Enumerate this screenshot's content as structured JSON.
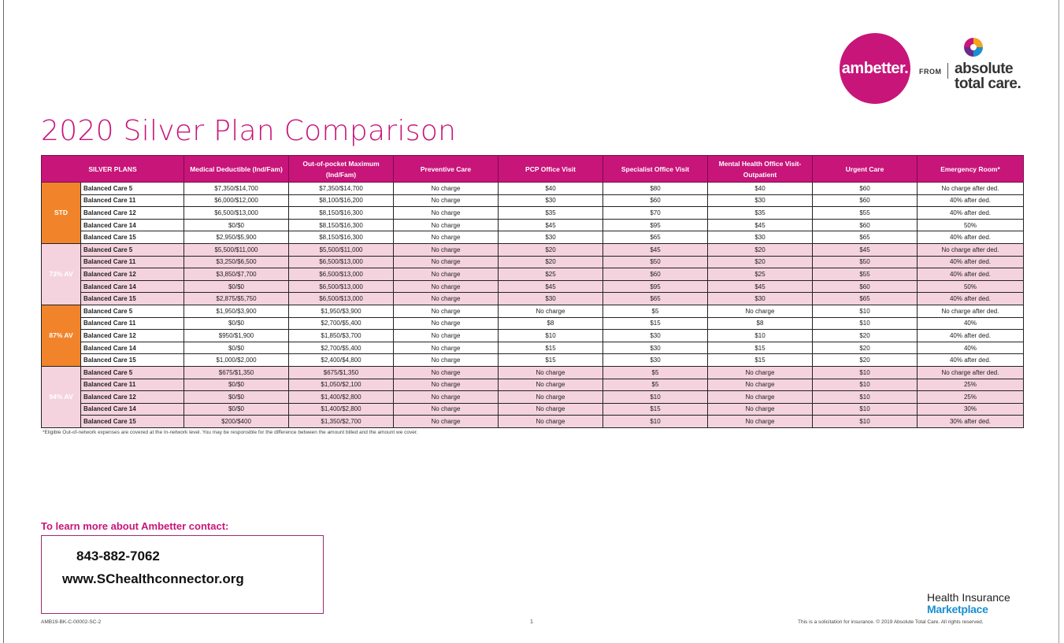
{
  "logo": {
    "brand": "ambetter.",
    "from": "FROM",
    "partner_line1": "absolute",
    "partner_line2": "total care."
  },
  "title": "2020 Silver Plan Comparison",
  "table": {
    "headers": [
      "SILVER PLANS",
      "Medical Deductible (Ind/Fam)",
      "Out-of-pocket Maximum (Ind/Fam)",
      "Preventive Care",
      "PCP Office Visit",
      "Specialist Office Visit",
      "Mental Health Office Visit-Outpatient",
      "Urgent Care",
      "Emergency Room*"
    ],
    "groups": [
      {
        "label": "STD",
        "rows": [
          [
            "Balanced Care 5",
            "$7,350/$14,700",
            "$7,350/$14,700",
            "No charge",
            "$40",
            "$80",
            "$40",
            "$60",
            "No charge after ded."
          ],
          [
            "Balanced Care 11",
            "$6,000/$12,000",
            "$8,100/$16,200",
            "No charge",
            "$30",
            "$60",
            "$30",
            "$60",
            "40% after ded."
          ],
          [
            "Balanced Care 12",
            "$6,500/$13,000",
            "$8,150/$16,300",
            "No charge",
            "$35",
            "$70",
            "$35",
            "$55",
            "40% after ded."
          ],
          [
            "Balanced Care 14",
            "$0/$0",
            "$8,150/$16,300",
            "No charge",
            "$45",
            "$95",
            "$45",
            "$60",
            "50%"
          ],
          [
            "Balanced Care 15",
            "$2,950/$5,900",
            "$8,150/$16,300",
            "No charge",
            "$30",
            "$65",
            "$30",
            "$65",
            "40% after ded."
          ]
        ]
      },
      {
        "label": "73% AV",
        "rows": [
          [
            "Balanced Care 5",
            "$5,500/$11,000",
            "$5,500/$11,000",
            "No charge",
            "$20",
            "$45",
            "$20",
            "$45",
            "No charge after ded."
          ],
          [
            "Balanced Care 11",
            "$3,250/$6,500",
            "$6,500/$13,000",
            "No charge",
            "$20",
            "$50",
            "$20",
            "$50",
            "40% after ded."
          ],
          [
            "Balanced Care 12",
            "$3,850/$7,700",
            "$6,500/$13,000",
            "No charge",
            "$25",
            "$60",
            "$25",
            "$55",
            "40% after ded."
          ],
          [
            "Balanced Care 14",
            "$0/$0",
            "$6,500/$13,000",
            "No charge",
            "$45",
            "$95",
            "$45",
            "$60",
            "50%"
          ],
          [
            "Balanced Care 15",
            "$2,875/$5,750",
            "$6,500/$13,000",
            "No charge",
            "$30",
            "$65",
            "$30",
            "$65",
            "40% after ded."
          ]
        ]
      },
      {
        "label": "87% AV",
        "rows": [
          [
            "Balanced Care 5",
            "$1,950/$3,900",
            "$1,950/$3,900",
            "No charge",
            "No charge",
            "$5",
            "No charge",
            "$10",
            "No charge after ded."
          ],
          [
            "Balanced Care 11",
            "$0/$0",
            "$2,700/$5,400",
            "No charge",
            "$8",
            "$15",
            "$8",
            "$10",
            "40%"
          ],
          [
            "Balanced Care 12",
            "$950/$1,900",
            "$1,850/$3,700",
            "No charge",
            "$10",
            "$30",
            "$10",
            "$20",
            "40% after ded."
          ],
          [
            "Balanced Care 14",
            "$0/$0",
            "$2,700/$5,400",
            "No charge",
            "$15",
            "$30",
            "$15",
            "$20",
            "40%"
          ],
          [
            "Balanced Care 15",
            "$1,000/$2,000",
            "$2,400/$4,800",
            "No charge",
            "$15",
            "$30",
            "$15",
            "$20",
            "40% after ded."
          ]
        ]
      },
      {
        "label": "94% AV",
        "rows": [
          [
            "Balanced Care 5",
            "$675/$1,350",
            "$675/$1,350",
            "No charge",
            "No charge",
            "$5",
            "No charge",
            "$10",
            "No charge after ded."
          ],
          [
            "Balanced Care 11",
            "$0/$0",
            "$1,050/$2,100",
            "No charge",
            "No charge",
            "$5",
            "No charge",
            "$10",
            "25%"
          ],
          [
            "Balanced Care 12",
            "$0/$0",
            "$1,400/$2,800",
            "No charge",
            "No charge",
            "$10",
            "No charge",
            "$10",
            "25%"
          ],
          [
            "Balanced Care 14",
            "$0/$0",
            "$1,400/$2,800",
            "No charge",
            "No charge",
            "$15",
            "No charge",
            "$10",
            "30%"
          ],
          [
            "Balanced Care 15",
            "$200/$400",
            "$1,350/$2,700",
            "No charge",
            "No charge",
            "$10",
            "No charge",
            "$10",
            "30% after ded."
          ]
        ]
      }
    ]
  },
  "footnote": "*Eligible Out-of-network expenses are covered at the In-network level. You may be responsible for the difference between the amount billed and the amount we cover.",
  "contact": {
    "heading": "To learn more about Ambetter contact:",
    "phone": "843-882-7062",
    "url": "www.SChealthconnector.org"
  },
  "footer": {
    "doc_code": "AMB19-BK-C-00002-SC-2",
    "page_number": "1",
    "disclaimer": "This is a solicitation for insurance. © 2019 Absolute Total Care. All rights reserved.",
    "marketplace_line1": "Health Insurance",
    "marketplace_line2": "Marketplace"
  },
  "colors": {
    "brand_magenta": "#c8157a",
    "group_orange": "#f1842a",
    "alt_row_pink": "#f4d3df",
    "marketplace_blue": "#1a8fd0"
  }
}
